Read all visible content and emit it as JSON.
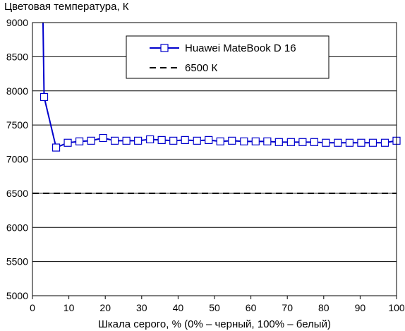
{
  "chart_data": {
    "type": "line",
    "title": "",
    "ylabel": "Цветовая температура, К",
    "xlabel": "Шкала серого, % (0% – черный, 100% – белый)",
    "xlim": [
      0,
      100
    ],
    "ylim": [
      5000,
      9000
    ],
    "xticks": [
      "0",
      "10",
      "20",
      "30",
      "40",
      "50",
      "60",
      "70",
      "80",
      "90",
      "100"
    ],
    "yticks": [
      "5000",
      "5500",
      "6000",
      "6500",
      "7000",
      "7500",
      "8000",
      "8500",
      "9000"
    ],
    "grid": "horizontal",
    "legend_position": "top-center",
    "series": [
      {
        "name": "Huawei MateBook D 16",
        "color": "#0000cc",
        "marker": "square",
        "line_start": {
          "x": 2.9,
          "y": 9000
        },
        "points": [
          {
            "x": 3.2,
            "y": 7910
          },
          {
            "x": 6.5,
            "y": 7170
          },
          {
            "x": 9.7,
            "y": 7240
          },
          {
            "x": 12.9,
            "y": 7260
          },
          {
            "x": 16.1,
            "y": 7270
          },
          {
            "x": 19.4,
            "y": 7310
          },
          {
            "x": 22.6,
            "y": 7270
          },
          {
            "x": 25.8,
            "y": 7270
          },
          {
            "x": 29.0,
            "y": 7270
          },
          {
            "x": 32.3,
            "y": 7290
          },
          {
            "x": 35.5,
            "y": 7280
          },
          {
            "x": 38.7,
            "y": 7270
          },
          {
            "x": 41.9,
            "y": 7280
          },
          {
            "x": 45.2,
            "y": 7270
          },
          {
            "x": 48.4,
            "y": 7280
          },
          {
            "x": 51.6,
            "y": 7260
          },
          {
            "x": 54.8,
            "y": 7270
          },
          {
            "x": 58.1,
            "y": 7260
          },
          {
            "x": 61.3,
            "y": 7260
          },
          {
            "x": 64.5,
            "y": 7260
          },
          {
            "x": 67.7,
            "y": 7250
          },
          {
            "x": 71.0,
            "y": 7250
          },
          {
            "x": 74.2,
            "y": 7250
          },
          {
            "x": 77.4,
            "y": 7250
          },
          {
            "x": 80.6,
            "y": 7240
          },
          {
            "x": 83.9,
            "y": 7240
          },
          {
            "x": 87.1,
            "y": 7240
          },
          {
            "x": 90.3,
            "y": 7240
          },
          {
            "x": 93.5,
            "y": 7240
          },
          {
            "x": 96.8,
            "y": 7240
          },
          {
            "x": 100,
            "y": 7270
          }
        ]
      },
      {
        "name": "6500 К",
        "color": "#000000",
        "dash": true,
        "points": [
          {
            "x": 0,
            "y": 6500
          },
          {
            "x": 100,
            "y": 6500
          }
        ]
      }
    ]
  }
}
